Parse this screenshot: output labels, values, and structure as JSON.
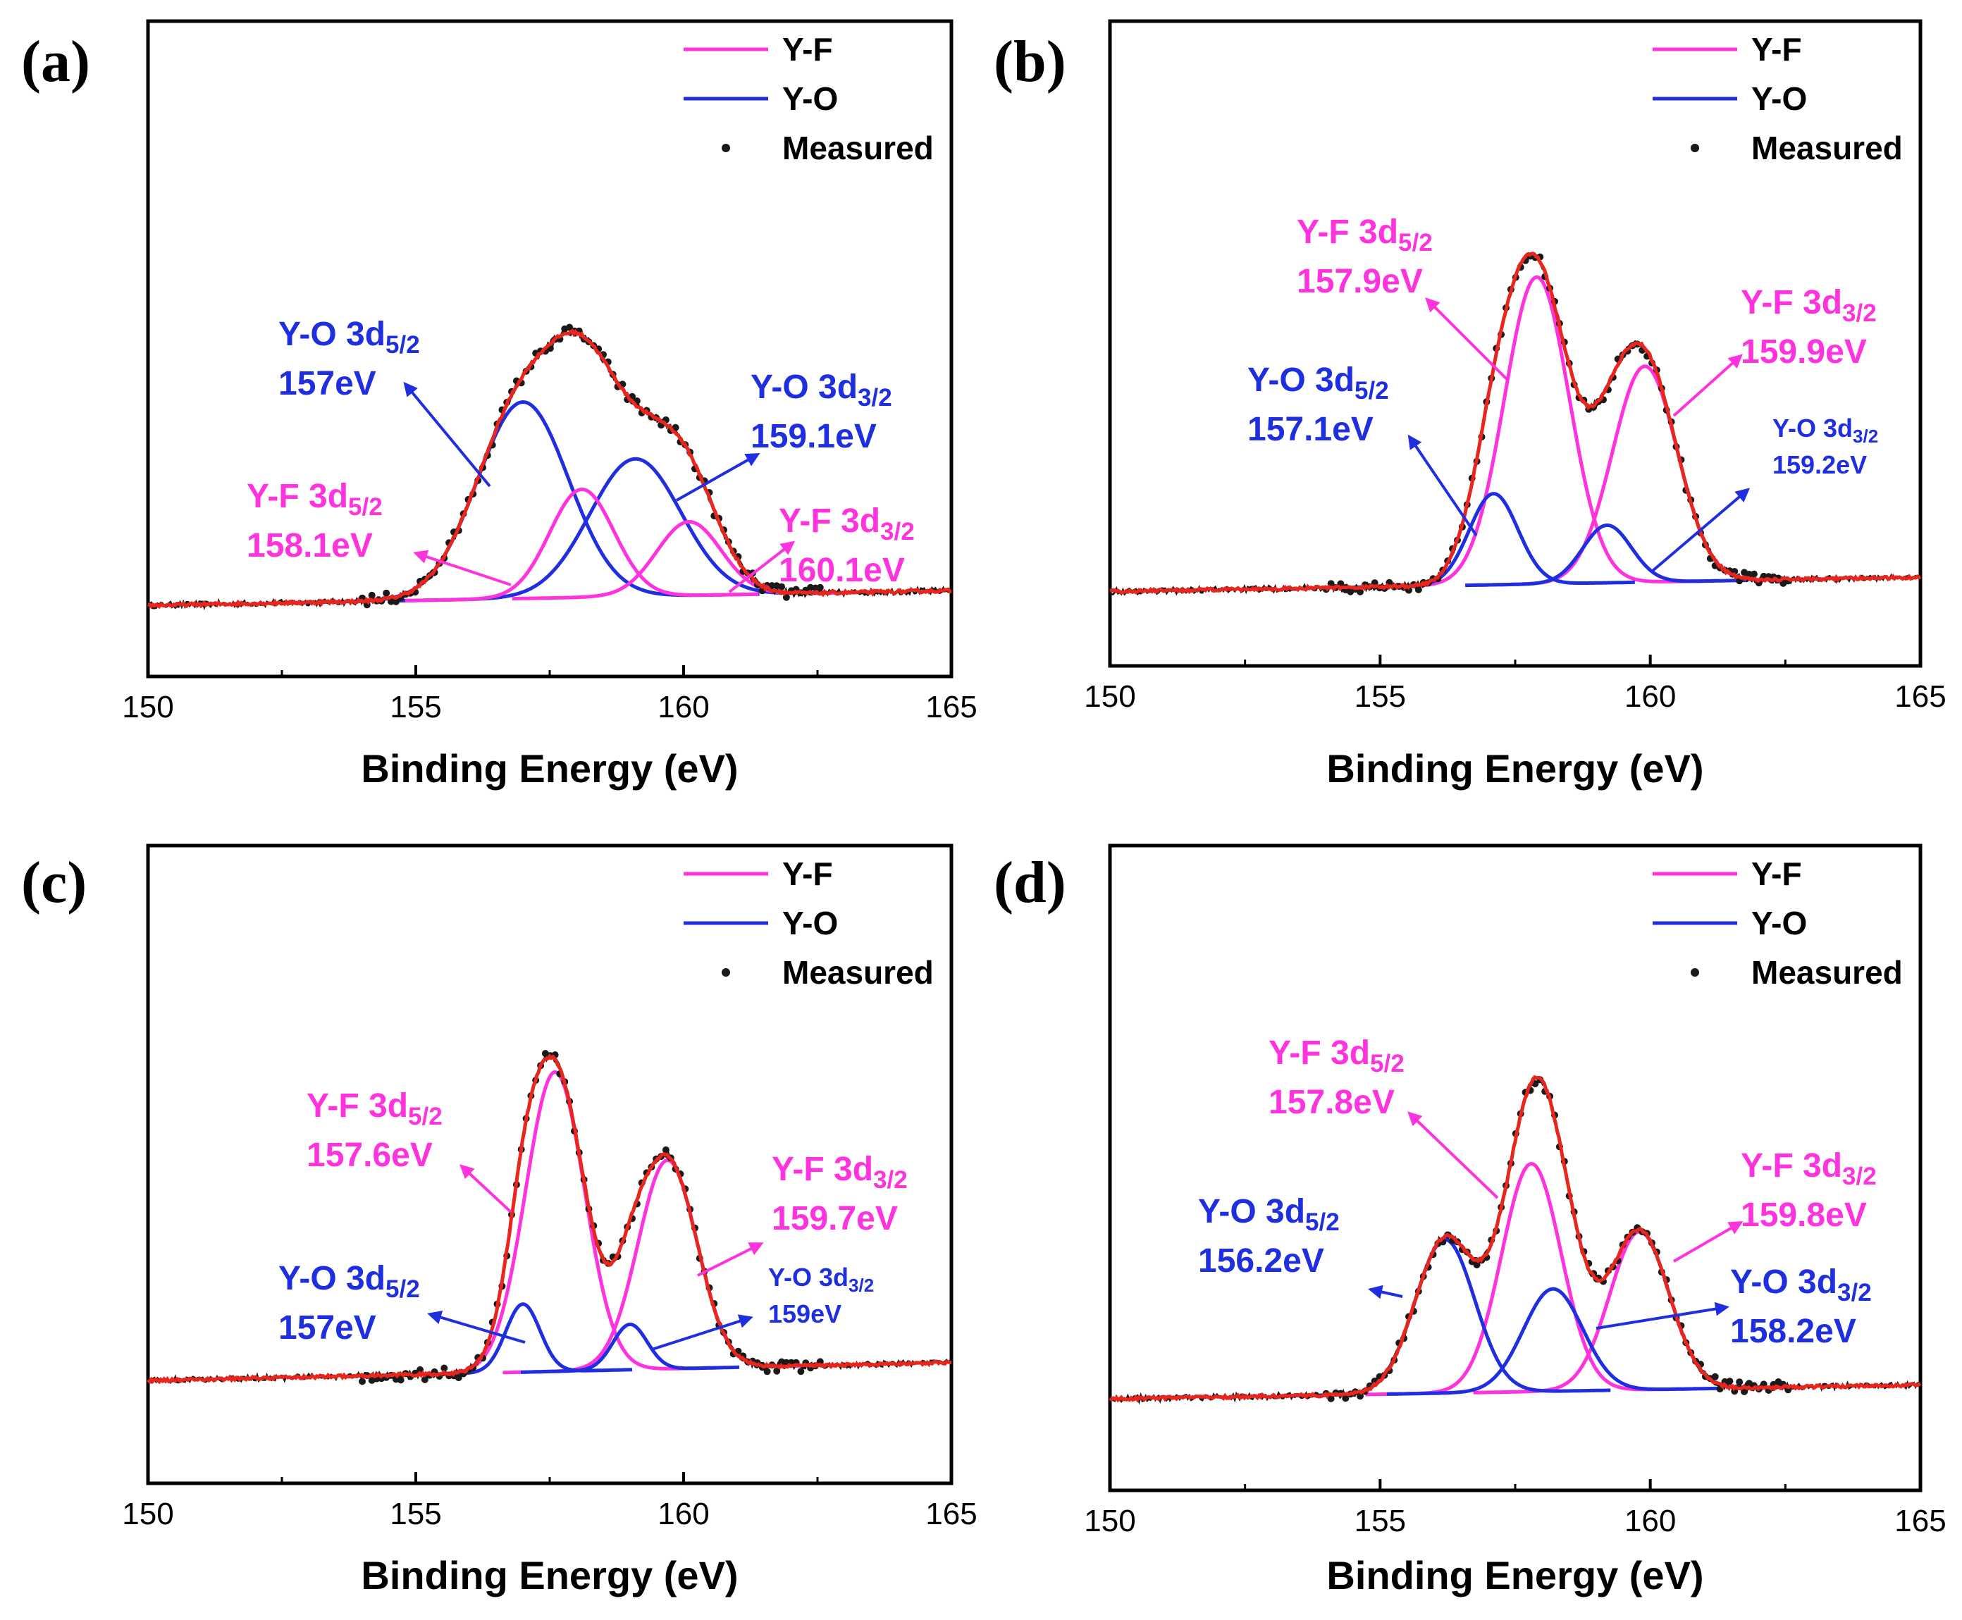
{
  "colors": {
    "yf": "#ff33dd",
    "yo": "#1f2fe0",
    "fit": "#e8261e",
    "measured": "#1a1a1a",
    "axis": "#000000"
  },
  "chart_data": [
    {
      "type": "line",
      "panel": "(a)",
      "xlabel": "Binding Energy (eV)",
      "xlim": [
        150,
        165
      ],
      "xticks": [
        "150",
        "155",
        "160",
        "165"
      ],
      "legend": [
        "Y-F",
        "Y-O",
        "Measured"
      ],
      "legend_position": "top-right",
      "series": [
        {
          "name": "Y-O 3d5/2",
          "type": "Y-O",
          "center": 157,
          "height": 0.4,
          "width": 0.85
        },
        {
          "name": "Y-O 3d3/2",
          "type": "Y-O",
          "center": 159.1,
          "height": 0.28,
          "width": 0.85
        },
        {
          "name": "Y-F 3d5/2",
          "type": "Y-F",
          "center": 158.1,
          "height": 0.22,
          "width": 0.6
        },
        {
          "name": "Y-F 3d3/2",
          "type": "Y-F",
          "center": 160.1,
          "height": 0.15,
          "width": 0.6
        }
      ],
      "baseline": {
        "start": 0.03,
        "end": 0.06
      },
      "annotations": [
        {
          "label": "Y-O 3d",
          "sub": "5/2",
          "value": "157eV",
          "type": "Y-O"
        },
        {
          "label": "Y-O 3d",
          "sub": "3/2",
          "value": "159.1eV",
          "type": "Y-O"
        },
        {
          "label": "Y-F 3d",
          "sub": "5/2",
          "value": "158.1eV",
          "type": "Y-F"
        },
        {
          "label": "Y-F 3d",
          "sub": "3/2",
          "value": "160.1eV",
          "type": "Y-F"
        }
      ]
    },
    {
      "type": "line",
      "panel": "(b)",
      "xlabel": "Binding Energy (eV)",
      "xlim": [
        150,
        165
      ],
      "xticks": [
        "150",
        "155",
        "160",
        "165"
      ],
      "legend": [
        "Y-F",
        "Y-O",
        "Measured"
      ],
      "legend_position": "top-right",
      "series": [
        {
          "name": "Y-F 3d5/2",
          "type": "Y-F",
          "center": 157.9,
          "height": 0.64,
          "width": 0.6
        },
        {
          "name": "Y-F 3d3/2",
          "type": "Y-F",
          "center": 159.9,
          "height": 0.45,
          "width": 0.6
        },
        {
          "name": "Y-O 3d5/2",
          "type": "Y-O",
          "center": 157.1,
          "height": 0.19,
          "width": 0.45
        },
        {
          "name": "Y-O 3d3/2",
          "type": "Y-O",
          "center": 159.2,
          "height": 0.12,
          "width": 0.45
        }
      ],
      "baseline": {
        "start": 0.03,
        "end": 0.06
      },
      "annotations": [
        {
          "label": "Y-F 3d",
          "sub": "5/2",
          "value": "157.9eV",
          "type": "Y-F"
        },
        {
          "label": "Y-F 3d",
          "sub": "3/2",
          "value": "159.9eV",
          "type": "Y-F"
        },
        {
          "label": "Y-O 3d",
          "sub": "5/2",
          "value": "157.1eV",
          "type": "Y-O"
        },
        {
          "label": "Y-O 3d",
          "sub": "3/2",
          "value": "159.2eV",
          "type": "Y-O"
        }
      ]
    },
    {
      "type": "line",
      "panel": "(c)",
      "xlabel": "Binding Energy (eV)",
      "xlim": [
        150,
        165
      ],
      "xticks": [
        "150",
        "155",
        "160",
        "165"
      ],
      "legend": [
        "Y-F",
        "Y-O",
        "Measured"
      ],
      "legend_position": "top-right",
      "series": [
        {
          "name": "Y-F 3d5/2",
          "type": "Y-F",
          "center": 157.6,
          "height": 0.66,
          "width": 0.55
        },
        {
          "name": "Y-F 3d3/2",
          "type": "Y-F",
          "center": 159.7,
          "height": 0.46,
          "width": 0.55
        },
        {
          "name": "Y-O 3d5/2",
          "type": "Y-O",
          "center": 157,
          "height": 0.15,
          "width": 0.32
        },
        {
          "name": "Y-O 3d3/2",
          "type": "Y-O",
          "center": 159,
          "height": 0.1,
          "width": 0.32
        }
      ],
      "baseline": {
        "start": 0.04,
        "end": 0.08
      },
      "annotations": [
        {
          "label": "Y-F 3d",
          "sub": "5/2",
          "value": "157.6eV",
          "type": "Y-F"
        },
        {
          "label": "Y-F 3d",
          "sub": "3/2",
          "value": "159.7eV",
          "type": "Y-F"
        },
        {
          "label": "Y-O 3d",
          "sub": "5/2",
          "value": "157eV",
          "type": "Y-O"
        },
        {
          "label": "Y-O 3d",
          "sub": "3/2",
          "value": "159eV",
          "type": "Y-O"
        }
      ]
    },
    {
      "type": "line",
      "panel": "(d)",
      "xlabel": "Binding Energy (eV)",
      "xlim": [
        150,
        165
      ],
      "xticks": [
        "150",
        "155",
        "160",
        "165"
      ],
      "legend": [
        "Y-F",
        "Y-O",
        "Measured"
      ],
      "legend_position": "top-right",
      "series": [
        {
          "name": "Y-F 3d5/2",
          "type": "Y-F",
          "center": 157.8,
          "height": 0.49,
          "width": 0.55
        },
        {
          "name": "Y-F 3d3/2",
          "type": "Y-F",
          "center": 159.8,
          "height": 0.34,
          "width": 0.55
        },
        {
          "name": "Y-O 3d5/2",
          "type": "Y-O",
          "center": 156.2,
          "height": 0.33,
          "width": 0.55
        },
        {
          "name": "Y-O 3d3/2",
          "type": "Y-O",
          "center": 158.2,
          "height": 0.22,
          "width": 0.55
        }
      ],
      "baseline": {
        "start": 0.03,
        "end": 0.06
      },
      "annotations": [
        {
          "label": "Y-F 3d",
          "sub": "5/2",
          "value": "157.8eV",
          "type": "Y-F"
        },
        {
          "label": "Y-F 3d",
          "sub": "3/2",
          "value": "159.8eV",
          "type": "Y-F"
        },
        {
          "label": "Y-O 3d",
          "sub": "5/2",
          "value": "156.2eV",
          "type": "Y-O"
        },
        {
          "label": "Y-O 3d",
          "sub": "3/2",
          "value": "158.2eV",
          "type": "Y-O"
        }
      ]
    }
  ]
}
